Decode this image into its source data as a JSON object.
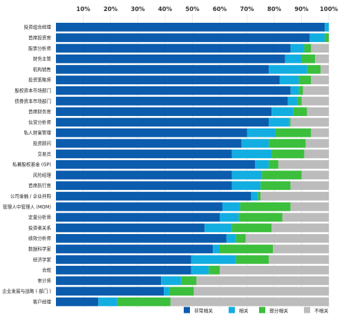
{
  "chart_data": {
    "type": "bar",
    "stacked": true,
    "orientation": "horizontal",
    "title": "",
    "xlabel": "",
    "ylabel": "",
    "xlim": [
      0,
      100
    ],
    "x_ticks": [
      "10%",
      "20%",
      "30%",
      "40%",
      "50%",
      "60%",
      "70%",
      "80%",
      "90%",
      "100%"
    ],
    "grid": true,
    "legend_position": "bottom-right",
    "categories": [
      "投资组合经理",
      "首席投资官",
      "股票分析师",
      "财务主管",
      "机构销售",
      "投资策略师",
      "股权资本市场部门",
      "债券资本市场部门",
      "首席财务官",
      "信贷分析师",
      "私人财富管理",
      "投资顾问",
      "交易员",
      "私募股权基金 (GP)",
      "风险经理",
      "首席执行官",
      "公司金融 / 企业并购",
      "管理人中管理人 (MOM)",
      "定量分析师",
      "投资者关系",
      "绩效分析师",
      "数据科学家",
      "经济学家",
      "合规",
      "审计师",
      "企业发展与战略 ( 部门 )",
      "客户经理"
    ],
    "series": [
      {
        "name": "非常相关",
        "color": "#0b5cad",
        "values": [
          98.5,
          93,
          86,
          84,
          78,
          82,
          86,
          85,
          79,
          78,
          70,
          68,
          64.5,
          73,
          64.5,
          64.5,
          71.5,
          61,
          60,
          54.5,
          62.5,
          57.5,
          49.5,
          49.5,
          38.5,
          39.5,
          15.5
        ]
      },
      {
        "name": "相关",
        "color": "#12aee2",
        "values": [
          1.5,
          5.5,
          5,
          6,
          14,
          7,
          3,
          3.5,
          8,
          7.5,
          10.5,
          10,
          14.5,
          5,
          11,
          10.5,
          2.5,
          6.5,
          7,
          10,
          3.5,
          2.5,
          16.5,
          6.5,
          7.5,
          2,
          7
        ]
      },
      {
        "name": "部分相关",
        "color": "#3cbf3c",
        "values": [
          0,
          1.5,
          2.5,
          5,
          5,
          4.5,
          1.5,
          1.5,
          5,
          0.5,
          13,
          13.5,
          12,
          3.5,
          14.5,
          11,
          1,
          18.5,
          16,
          14.5,
          3.5,
          19.5,
          12,
          4,
          5.5,
          9,
          19.5
        ]
      },
      {
        "name": "不相关",
        "color": "#bcbcbc",
        "values": [
          0,
          0,
          6.5,
          5,
          3,
          6.5,
          9.5,
          10,
          8,
          14,
          6.5,
          8.5,
          9,
          18.5,
          10,
          14,
          25,
          14,
          17,
          21,
          30.5,
          20.5,
          22,
          40,
          48.5,
          49.5,
          58
        ]
      }
    ]
  }
}
